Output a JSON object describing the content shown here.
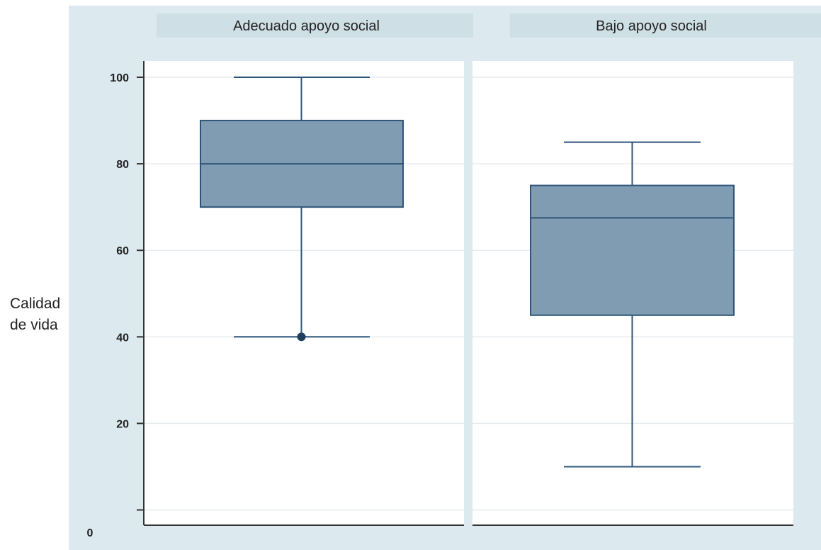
{
  "chart_data": {
    "type": "boxplot",
    "ylabel": "Calidad de vida",
    "ylabel_lines": [
      "Calidad",
      "de vida"
    ],
    "y_ticks": [
      20,
      40,
      60,
      80,
      100
    ],
    "y_zero_label": "0",
    "ylim": [
      0,
      100
    ],
    "grid": true,
    "panels": [
      {
        "title": "Adecuado apoyo social",
        "box": {
          "whisker_low": 40,
          "q1": 70,
          "median": 80,
          "q3": 90,
          "whisker_high": 100
        },
        "outliers": [
          40
        ]
      },
      {
        "title": "Bajo apoyo social",
        "box": {
          "whisker_low": 10,
          "q1": 45,
          "median": 67.5,
          "q3": 75,
          "whisker_high": 85
        },
        "outliers": []
      }
    ],
    "colors": {
      "outer_background": "#dce9ee",
      "plot_background": "#ffffff",
      "strip_background": "#cfdfe6",
      "box_fill": "#7f9cb2",
      "box_stroke": "#2d5478",
      "gridline": "#e6ecef",
      "axis": "#333333",
      "text": "#222222"
    }
  }
}
